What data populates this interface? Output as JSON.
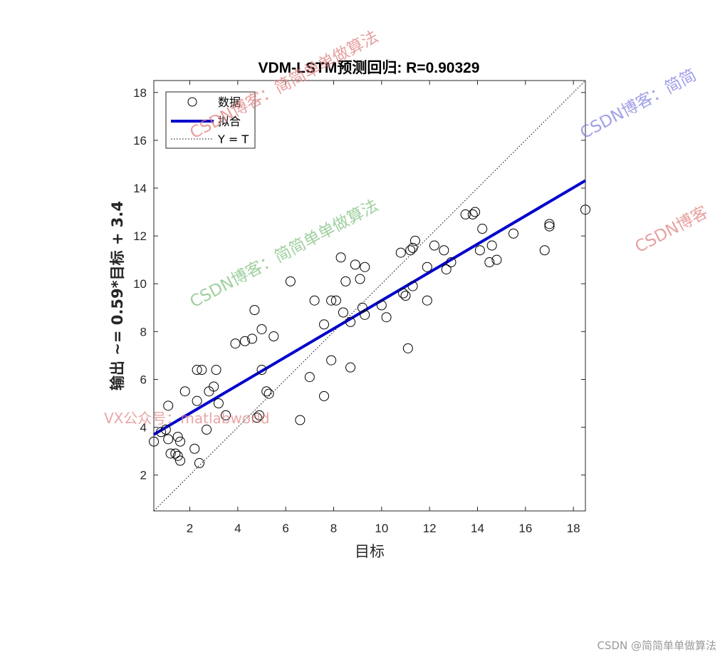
{
  "chart_data": {
    "type": "scatter",
    "title": "VDM-LSTM预测回归: R=0.90329",
    "xlabel": "目标",
    "ylabel": "输出 ~= 0.59*目标 + 3.4",
    "xlim": [
      0.5,
      18.5
    ],
    "ylim": [
      0.5,
      18.5
    ],
    "x_ticks": [
      2,
      4,
      6,
      8,
      10,
      12,
      14,
      16,
      18
    ],
    "y_ticks": [
      2,
      4,
      6,
      8,
      10,
      12,
      14,
      16,
      18
    ],
    "grid": false,
    "legend_position": "top-left",
    "legend": [
      "数据",
      "拟合",
      "Y = T"
    ],
    "series": [
      {
        "name": "数据",
        "marker": "circle",
        "color": "#000000",
        "points": [
          [
            0.5,
            3.4
          ],
          [
            0.8,
            3.8
          ],
          [
            1.0,
            3.9
          ],
          [
            1.1,
            3.5
          ],
          [
            1.1,
            4.9
          ],
          [
            1.2,
            2.9
          ],
          [
            1.4,
            2.9
          ],
          [
            1.5,
            2.8
          ],
          [
            1.5,
            3.6
          ],
          [
            1.6,
            3.4
          ],
          [
            1.6,
            2.6
          ],
          [
            1.8,
            5.5
          ],
          [
            2.2,
            3.1
          ],
          [
            2.3,
            5.1
          ],
          [
            2.3,
            6.4
          ],
          [
            2.4,
            2.5
          ],
          [
            2.5,
            6.4
          ],
          [
            2.7,
            3.9
          ],
          [
            2.8,
            5.5
          ],
          [
            3.0,
            5.7
          ],
          [
            3.1,
            6.4
          ],
          [
            3.2,
            5.0
          ],
          [
            3.5,
            4.5
          ],
          [
            3.9,
            7.5
          ],
          [
            4.3,
            7.6
          ],
          [
            4.6,
            7.7
          ],
          [
            4.7,
            8.9
          ],
          [
            4.8,
            4.4
          ],
          [
            4.9,
            4.5
          ],
          [
            5.0,
            8.1
          ],
          [
            5.0,
            6.4
          ],
          [
            5.2,
            5.5
          ],
          [
            5.3,
            5.4
          ],
          [
            5.5,
            7.8
          ],
          [
            6.2,
            10.1
          ],
          [
            6.6,
            4.3
          ],
          [
            7.0,
            6.1
          ],
          [
            7.2,
            9.3
          ],
          [
            7.6,
            8.3
          ],
          [
            7.6,
            5.3
          ],
          [
            7.9,
            6.8
          ],
          [
            7.9,
            9.3
          ],
          [
            8.1,
            9.3
          ],
          [
            8.3,
            11.1
          ],
          [
            8.4,
            8.8
          ],
          [
            8.5,
            10.1
          ],
          [
            8.7,
            8.4
          ],
          [
            8.7,
            6.5
          ],
          [
            8.9,
            10.8
          ],
          [
            9.1,
            10.2
          ],
          [
            9.2,
            9.0
          ],
          [
            9.3,
            8.7
          ],
          [
            9.3,
            10.7
          ],
          [
            10.0,
            9.1
          ],
          [
            10.2,
            8.6
          ],
          [
            10.8,
            11.3
          ],
          [
            10.9,
            9.6
          ],
          [
            11.0,
            9.5
          ],
          [
            11.1,
            7.3
          ],
          [
            11.2,
            11.4
          ],
          [
            11.3,
            9.9
          ],
          [
            11.3,
            11.5
          ],
          [
            11.4,
            11.8
          ],
          [
            11.9,
            9.3
          ],
          [
            11.9,
            10.7
          ],
          [
            12.2,
            11.6
          ],
          [
            12.6,
            11.4
          ],
          [
            12.7,
            10.6
          ],
          [
            12.9,
            10.9
          ],
          [
            13.5,
            12.9
          ],
          [
            13.8,
            12.9
          ],
          [
            13.9,
            13.0
          ],
          [
            14.1,
            11.4
          ],
          [
            14.2,
            12.3
          ],
          [
            14.5,
            10.9
          ],
          [
            14.6,
            11.6
          ],
          [
            14.8,
            11.0
          ],
          [
            15.5,
            12.1
          ],
          [
            16.8,
            11.4
          ],
          [
            17.0,
            12.5
          ],
          [
            17.0,
            12.4
          ],
          [
            18.5,
            13.1
          ]
        ]
      },
      {
        "name": "拟合",
        "type": "line",
        "color": "#0000CC",
        "slope": 0.59,
        "intercept": 3.4
      },
      {
        "name": "Y = T",
        "type": "line",
        "style": "dotted",
        "color": "#000000",
        "slope": 1,
        "intercept": 0
      }
    ]
  },
  "watermarks": {
    "red_top": "CSDN博客：简简单单做算法",
    "blue_right": "CSDN博客：简简",
    "red_right": "CSDN博客",
    "green_mid": "CSDN博客：简简单单做算法",
    "red_vx": "VX公众号：matlabworld",
    "footer": "CSDN @简简单单做算法"
  }
}
